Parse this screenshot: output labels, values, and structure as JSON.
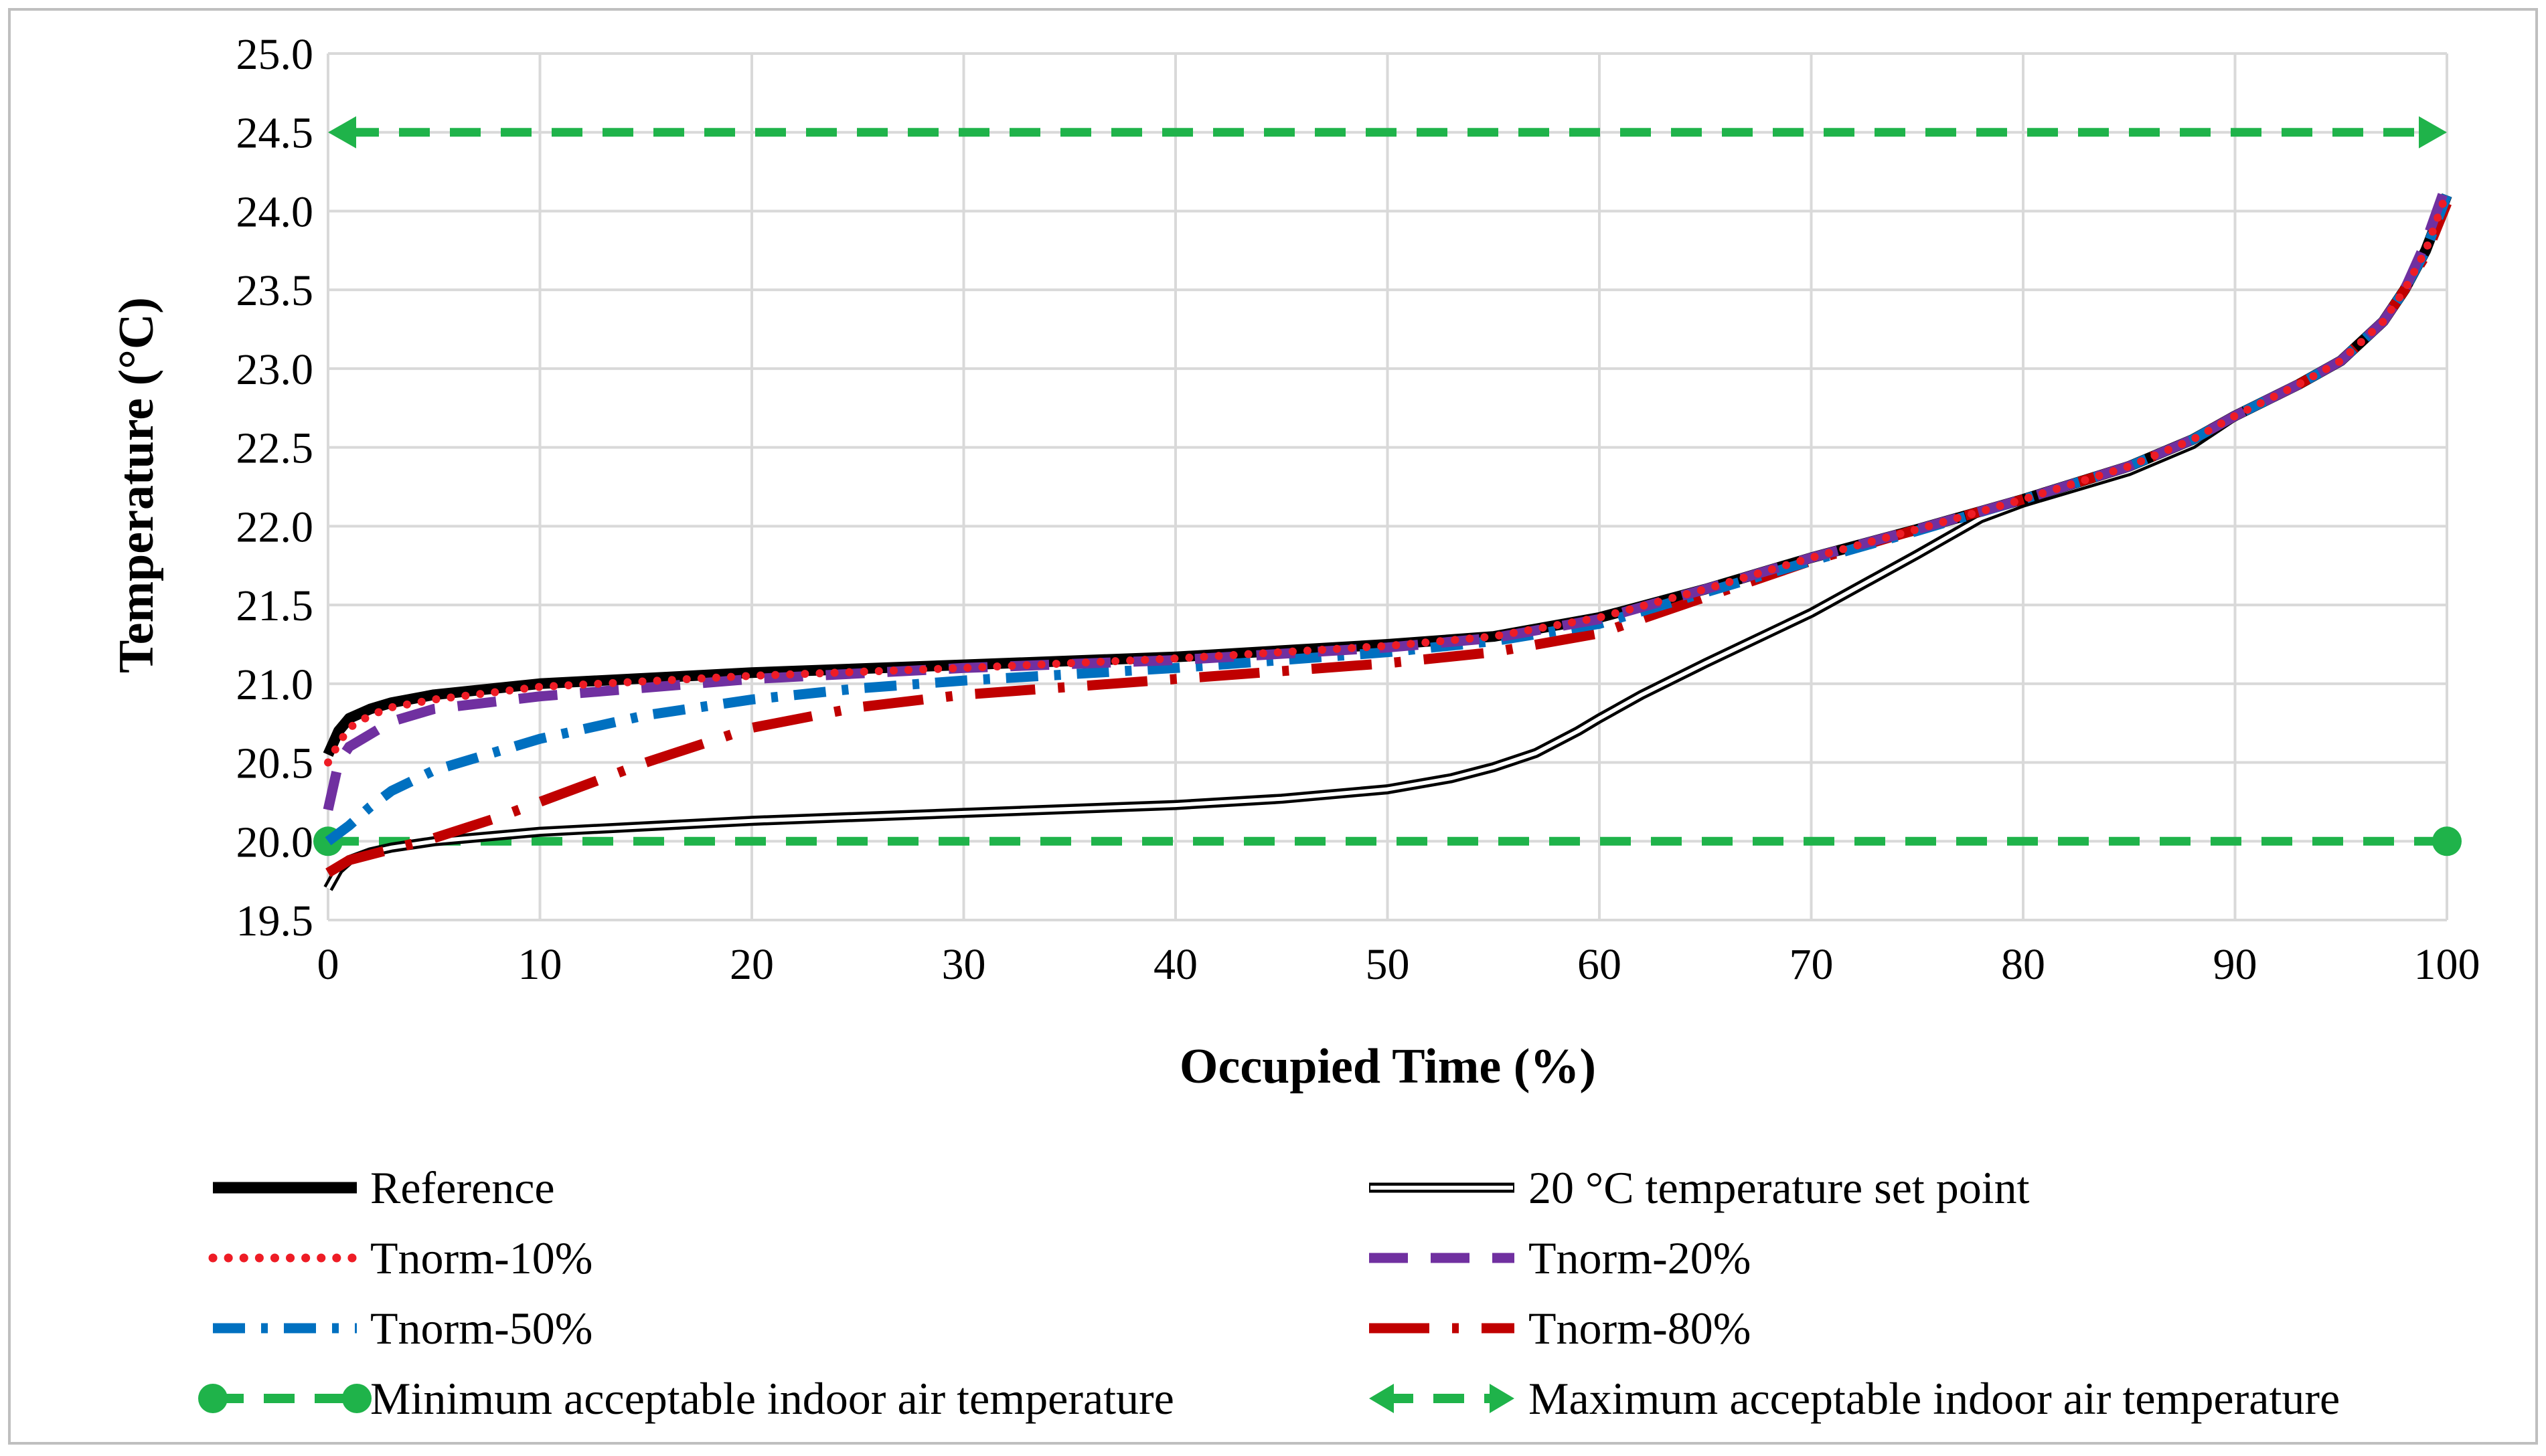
{
  "chart_data": {
    "type": "line",
    "title": "",
    "xlabel": "Occupied Time (%)",
    "ylabel": "Temperature (°C)",
    "xlim": [
      0,
      100
    ],
    "ylim": [
      19.5,
      25.0
    ],
    "x_ticks": [
      "0",
      "10",
      "20",
      "30",
      "40",
      "50",
      "60",
      "70",
      "80",
      "90",
      "100"
    ],
    "y_ticks": [
      "19.5",
      "20.0",
      "20.5",
      "21.0",
      "21.5",
      "22.0",
      "22.5",
      "23.0",
      "23.5",
      "24.0",
      "24.5",
      "25.0"
    ],
    "grid": true,
    "legend_position": "bottom",
    "series": [
      {
        "name": "Reference",
        "color": "#000000",
        "style": "thick-solid",
        "points": [
          [
            0,
            20.55
          ],
          [
            0.5,
            20.7
          ],
          [
            1,
            20.78
          ],
          [
            2,
            20.84
          ],
          [
            3,
            20.88
          ],
          [
            5,
            20.93
          ],
          [
            10,
            21.0
          ],
          [
            20,
            21.07
          ],
          [
            30,
            21.12
          ],
          [
            40,
            21.17
          ],
          [
            50,
            21.25
          ],
          [
            55,
            21.3
          ],
          [
            60,
            21.42
          ],
          [
            65,
            21.6
          ],
          [
            70,
            21.8
          ],
          [
            75,
            21.98
          ],
          [
            80,
            22.17
          ],
          [
            85,
            22.38
          ],
          [
            88,
            22.55
          ],
          [
            90,
            22.7
          ],
          [
            93,
            22.9
          ],
          [
            95,
            23.05
          ],
          [
            97,
            23.3
          ],
          [
            98,
            23.5
          ],
          [
            99,
            23.75
          ],
          [
            100,
            24.1
          ]
        ]
      },
      {
        "name": "20 °C temperature set point",
        "color": "#000000",
        "style": "double-line",
        "points": [
          [
            0,
            19.7
          ],
          [
            0.5,
            19.82
          ],
          [
            1,
            19.88
          ],
          [
            2,
            19.93
          ],
          [
            3,
            19.96
          ],
          [
            5,
            20.0
          ],
          [
            10,
            20.06
          ],
          [
            20,
            20.13
          ],
          [
            30,
            20.18
          ],
          [
            40,
            20.23
          ],
          [
            45,
            20.27
          ],
          [
            50,
            20.33
          ],
          [
            53,
            20.4
          ],
          [
            55,
            20.47
          ],
          [
            57,
            20.56
          ],
          [
            59,
            20.7
          ],
          [
            60,
            20.78
          ],
          [
            62,
            20.93
          ],
          [
            65,
            21.13
          ],
          [
            70,
            21.45
          ],
          [
            75,
            21.82
          ],
          [
            78,
            22.05
          ],
          [
            80,
            22.15
          ],
          [
            85,
            22.35
          ],
          [
            88,
            22.52
          ],
          [
            90,
            22.7
          ],
          [
            93,
            22.9
          ],
          [
            95,
            23.05
          ],
          [
            97,
            23.3
          ],
          [
            98,
            23.5
          ],
          [
            99,
            23.75
          ],
          [
            100,
            24.1
          ]
        ]
      },
      {
        "name": "Tnorm-10%",
        "color": "#ee1c25",
        "style": "dotted",
        "points": [
          [
            0,
            20.5
          ],
          [
            0.5,
            20.62
          ],
          [
            1,
            20.72
          ],
          [
            2,
            20.8
          ],
          [
            3,
            20.85
          ],
          [
            5,
            20.9
          ],
          [
            10,
            20.98
          ],
          [
            20,
            21.05
          ],
          [
            30,
            21.1
          ],
          [
            40,
            21.16
          ],
          [
            50,
            21.24
          ],
          [
            55,
            21.3
          ],
          [
            60,
            21.42
          ],
          [
            65,
            21.6
          ],
          [
            70,
            21.8
          ],
          [
            75,
            21.98
          ],
          [
            80,
            22.17
          ],
          [
            85,
            22.38
          ],
          [
            88,
            22.55
          ],
          [
            90,
            22.7
          ],
          [
            93,
            22.9
          ],
          [
            95,
            23.05
          ],
          [
            97,
            23.3
          ],
          [
            98,
            23.5
          ],
          [
            99,
            23.75
          ],
          [
            100,
            24.12
          ]
        ]
      },
      {
        "name": "Tnorm-20%",
        "color": "#7030a0",
        "style": "dashed",
        "points": [
          [
            0,
            20.2
          ],
          [
            0.5,
            20.5
          ],
          [
            1,
            20.6
          ],
          [
            2,
            20.68
          ],
          [
            3,
            20.76
          ],
          [
            5,
            20.84
          ],
          [
            10,
            20.92
          ],
          [
            20,
            21.03
          ],
          [
            30,
            21.1
          ],
          [
            40,
            21.15
          ],
          [
            50,
            21.23
          ],
          [
            55,
            21.29
          ],
          [
            60,
            21.41
          ],
          [
            65,
            21.6
          ],
          [
            70,
            21.8
          ],
          [
            75,
            21.98
          ],
          [
            80,
            22.17
          ],
          [
            85,
            22.38
          ],
          [
            88,
            22.55
          ],
          [
            90,
            22.7
          ],
          [
            93,
            22.9
          ],
          [
            95,
            23.05
          ],
          [
            97,
            23.3
          ],
          [
            98,
            23.5
          ],
          [
            99,
            23.8
          ],
          [
            100,
            24.18
          ]
        ]
      },
      {
        "name": "Tnorm-50%",
        "color": "#0070c0",
        "style": "dash-dot",
        "points": [
          [
            0,
            20.0
          ],
          [
            1,
            20.1
          ],
          [
            2,
            20.22
          ],
          [
            3,
            20.32
          ],
          [
            5,
            20.45
          ],
          [
            10,
            20.65
          ],
          [
            15,
            20.8
          ],
          [
            20,
            20.9
          ],
          [
            25,
            20.97
          ],
          [
            30,
            21.02
          ],
          [
            40,
            21.1
          ],
          [
            50,
            21.2
          ],
          [
            55,
            21.27
          ],
          [
            60,
            21.38
          ],
          [
            65,
            21.58
          ],
          [
            70,
            21.78
          ],
          [
            75,
            21.97
          ],
          [
            80,
            22.17
          ],
          [
            85,
            22.38
          ],
          [
            88,
            22.55
          ],
          [
            90,
            22.7
          ],
          [
            93,
            22.9
          ],
          [
            95,
            23.05
          ],
          [
            97,
            23.3
          ],
          [
            98,
            23.5
          ],
          [
            99,
            23.75
          ],
          [
            100,
            24.1
          ]
        ]
      },
      {
        "name": "Tnorm-80%",
        "color": "#c00000",
        "style": "long-dash-dot",
        "points": [
          [
            0,
            19.8
          ],
          [
            1,
            19.88
          ],
          [
            3,
            19.95
          ],
          [
            5,
            20.02
          ],
          [
            8,
            20.15
          ],
          [
            10,
            20.25
          ],
          [
            15,
            20.5
          ],
          [
            20,
            20.72
          ],
          [
            25,
            20.85
          ],
          [
            30,
            20.93
          ],
          [
            40,
            21.03
          ],
          [
            50,
            21.13
          ],
          [
            55,
            21.2
          ],
          [
            60,
            21.32
          ],
          [
            65,
            21.55
          ],
          [
            70,
            21.78
          ],
          [
            75,
            21.98
          ],
          [
            80,
            22.17
          ],
          [
            85,
            22.38
          ],
          [
            88,
            22.55
          ],
          [
            90,
            22.7
          ],
          [
            93,
            22.9
          ],
          [
            95,
            23.05
          ],
          [
            97,
            23.3
          ],
          [
            98,
            23.5
          ],
          [
            99,
            23.72
          ],
          [
            100,
            24.05
          ]
        ]
      },
      {
        "name": "Minimum acceptable indoor air temperature",
        "color": "#1fb34a",
        "style": "dashed-circle-ends",
        "points": [
          [
            0,
            20.0
          ],
          [
            100,
            20.0
          ]
        ]
      },
      {
        "name": "Maximum acceptable indoor air temperature",
        "color": "#1fb34a",
        "style": "dashed-arrow-ends",
        "points": [
          [
            0,
            24.5
          ],
          [
            100,
            24.5
          ]
        ]
      }
    ]
  }
}
